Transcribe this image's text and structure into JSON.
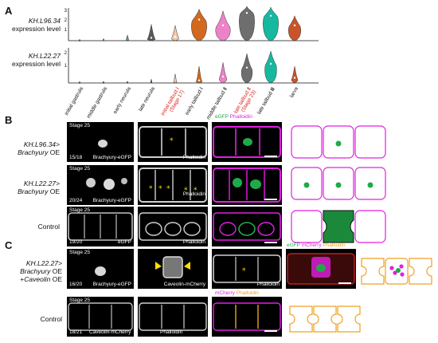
{
  "panel_a": {
    "letter": "A",
    "row1": {
      "gene": "KH.L96.34",
      "suffix": "expression level",
      "ticks": [
        "3",
        "2",
        "1"
      ]
    },
    "row2": {
      "gene": "KH.L22.27",
      "suffix": "expression level",
      "ticks": [
        "2",
        "1"
      ]
    },
    "stages": [
      "initial gastrula",
      "middle gastrula",
      "early neurula",
      "late neurula",
      "initial tailbud Ⅰ (Stage 17)",
      "early tailbud Ⅰ",
      "middle tailbud Ⅱ",
      "late tailbud Ⅱ (Stage 23)",
      "late tailbud Ⅲ",
      "larva"
    ],
    "stage_lines": [
      [
        "initial gastrula"
      ],
      [
        "middle gastrula"
      ],
      [
        "early neurula"
      ],
      [
        "late neurula"
      ],
      [
        "initial tailbud Ⅰ",
        "(Stage 17)"
      ],
      [
        "early tailbud Ⅰ"
      ],
      [
        "middle tailbud Ⅱ"
      ],
      [
        "late tailbud Ⅱ",
        "(Stage 23)"
      ],
      [
        "late tailbud Ⅲ"
      ],
      [
        "larva"
      ]
    ],
    "stage_colors": [
      "#111111",
      "#111111",
      "#111111",
      "#111111",
      "#e0201c",
      "#111111",
      "#111111",
      "#e0201c",
      "#111111",
      "#111111"
    ],
    "violin_colors": [
      "#e8303a",
      "#d2b48c",
      "#3cb371",
      "#5a5a5a",
      "#f3c9a8",
      "#d2691e",
      "#ee82c8",
      "#6e6e6e",
      "#17b8a0",
      "#c8552a"
    ]
  },
  "chart_data": [
    {
      "type": "violin",
      "ylabel": "KH.L96.34 expression level",
      "yticks": [
        1,
        2,
        3
      ],
      "categories": [
        "initial gastrula",
        "middle gastrula",
        "early neurula",
        "late neurula",
        "initial tailbud Ⅰ (Stage 17)",
        "early tailbud Ⅰ",
        "middle tailbud Ⅱ",
        "late tailbud Ⅱ (Stage 23)",
        "late tailbud Ⅲ",
        "larva"
      ],
      "max": [
        0.05,
        0.2,
        0.6,
        1.7,
        1.6,
        3.3,
        3.1,
        3.6,
        3.5,
        2.6
      ],
      "peak": [
        0.02,
        0.05,
        0.1,
        0.3,
        0.4,
        2.2,
        1.6,
        2.9,
        2.6,
        1.6
      ]
    },
    {
      "type": "violin",
      "ylabel": "KH.L22.27 expression level",
      "yticks": [
        1,
        2
      ],
      "categories": [
        "initial gastrula",
        "middle gastrula",
        "early neurula",
        "late neurula",
        "initial tailbud Ⅰ (Stage 17)",
        "early tailbud Ⅰ",
        "middle tailbud Ⅱ",
        "late tailbud Ⅱ (Stage 23)",
        "late tailbud Ⅲ",
        "larva"
      ],
      "max": [
        0.05,
        0.1,
        0.1,
        0.3,
        0.7,
        1.3,
        1.6,
        2.3,
        2.5,
        1.3
      ],
      "peak": [
        0.02,
        0.02,
        0.03,
        0.05,
        0.1,
        0.2,
        0.5,
        1.2,
        1.5,
        0.4
      ]
    }
  ],
  "panel_b": {
    "letter": "B",
    "merge_header": {
      "a": "eGFP",
      "b": "Phalloidin"
    },
    "rows": [
      {
        "gene": "KH.L96.34>",
        "label2": "Brachyury",
        "oe": "OE",
        "stage": "Stage 25",
        "count": "15/18",
        "ch1": "Brachyury-eGFP",
        "ch2": "Phalloidin"
      },
      {
        "gene": "KH.L22.27>",
        "label2": "Brachyury",
        "oe": "OE",
        "stage": "Stage 25",
        "count": "20/24",
        "ch1": "Brachyury-eGFP",
        "ch2": "Phalloidin"
      },
      {
        "gene": "Control",
        "label2": "",
        "oe": "",
        "stage": "Stage 25",
        "count": "19/20",
        "ch1": "eGFP",
        "ch2": "Phalloidin"
      }
    ]
  },
  "panel_c": {
    "letter": "C",
    "row1": {
      "l1": "KH.L22.27>",
      "l2a": "Brachyury",
      "l2b": "OE",
      "l3a": "+",
      "l3b": "Caveolin",
      "l3c": "OE",
      "stage": "Stage 25",
      "count": "16/20",
      "ch1": "Brachyury-eGFP",
      "ch2": "Caveolin-mCherry",
      "ch3": "Phalloidin",
      "merge_header": {
        "a": "eGFP",
        "b": "mCherry",
        "c": "Phalloidin"
      }
    },
    "row2": {
      "label": "Control",
      "stage": "Stage 25",
      "count": "18/21",
      "ch1": "Caveolin-mCherry",
      "ch2": "Phalloidin",
      "merge_header": {
        "a": "mCherry",
        "b": "Phalloidin"
      }
    }
  },
  "colors": {
    "egfp": "#1faa4a",
    "magenta": "#e020e0",
    "phalloidin_orange": "#f0a020",
    "mcherry": "#e020e0",
    "asterisk": "#ffe000",
    "arrowhead": "#ffe000",
    "red_label": "#e0201c"
  }
}
